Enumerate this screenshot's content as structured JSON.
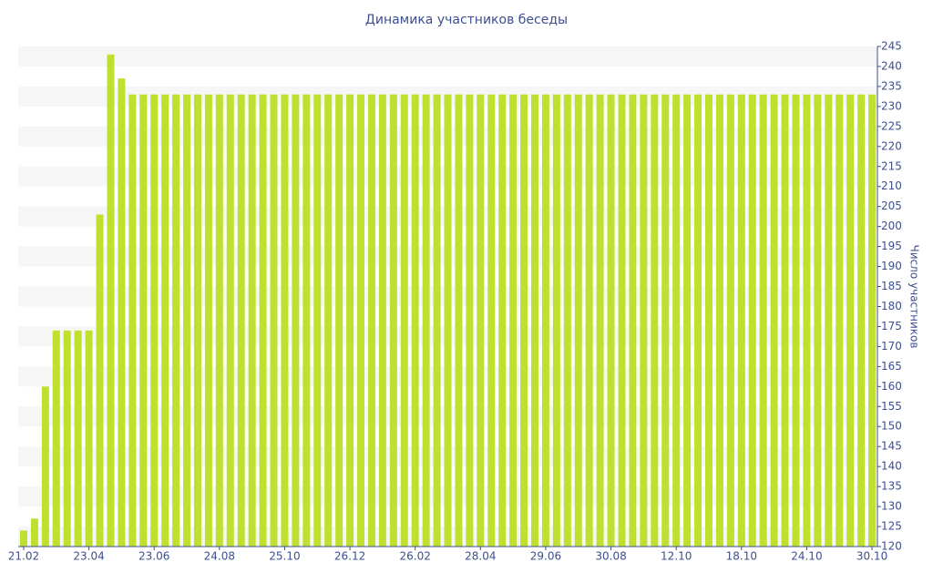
{
  "chart_data": {
    "type": "bar",
    "title": "Динамика участников беседы",
    "y_label": "Число участников",
    "categories": [
      "21.02",
      null,
      null,
      null,
      null,
      null,
      "23.04",
      null,
      null,
      null,
      null,
      null,
      "23.06",
      null,
      null,
      null,
      null,
      null,
      "24.08",
      null,
      null,
      null,
      null,
      null,
      "25.10",
      null,
      null,
      null,
      null,
      null,
      "26.12",
      null,
      null,
      null,
      null,
      null,
      "26.02",
      null,
      null,
      null,
      null,
      null,
      "28.04",
      null,
      null,
      null,
      null,
      null,
      "29.06",
      null,
      null,
      null,
      null,
      null,
      "30.08",
      null,
      null,
      null,
      null,
      null,
      "12.10",
      null,
      null,
      null,
      null,
      null,
      "18.10",
      null,
      null,
      null,
      null,
      null,
      "24.10",
      null,
      null,
      null,
      null,
      null,
      "30.10"
    ],
    "values": [
      124,
      127,
      160,
      174,
      174,
      174,
      174,
      203,
      243,
      237,
      233,
      233,
      233,
      233,
      233,
      233,
      233,
      233,
      233,
      233,
      233,
      233,
      233,
      233,
      233,
      233,
      233,
      233,
      233,
      233,
      233,
      233,
      233,
      233,
      233,
      233,
      233,
      233,
      233,
      233,
      233,
      233,
      233,
      233,
      233,
      233,
      233,
      233,
      233,
      233,
      233,
      233,
      233,
      233,
      233,
      233,
      233,
      233,
      233,
      233,
      233,
      233,
      233,
      233,
      233,
      233,
      233,
      233,
      233,
      233,
      233,
      233,
      233,
      233,
      233,
      233,
      233,
      233,
      233
    ],
    "color": "#c0e030",
    "ylim": [
      120,
      245
    ],
    "yticks": [
      120,
      125,
      130,
      135,
      140,
      145,
      150,
      155,
      160,
      165,
      170,
      175,
      180,
      185,
      190,
      195,
      200,
      205,
      210,
      215,
      220,
      225,
      230,
      235,
      240,
      245
    ],
    "grid": "bands",
    "y_axis_side": "right"
  }
}
